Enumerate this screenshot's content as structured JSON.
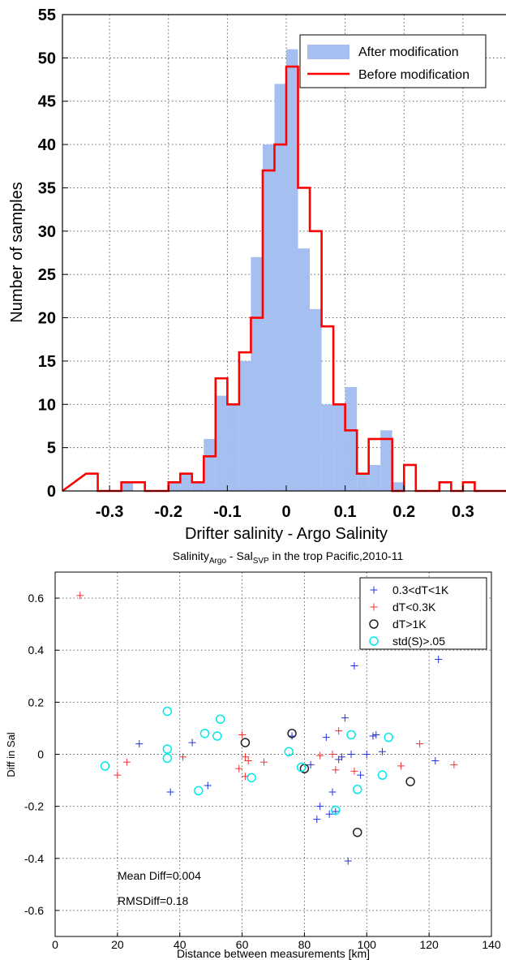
{
  "chart_data": [
    {
      "type": "bar",
      "xlabel": "Drifter salinity - Argo Salinity",
      "ylabel": "Number of samples",
      "xlim": [
        -0.38,
        0.38
      ],
      "ylim": [
        0,
        55
      ],
      "xticks": [
        "-0.3",
        "-0.2",
        "-0.1",
        "0",
        "0.1",
        "0.2",
        "0.3"
      ],
      "yticks": [
        "0",
        "5",
        "10",
        "15",
        "20",
        "25",
        "30",
        "35",
        "40",
        "45",
        "50",
        "55"
      ],
      "bin_width": 0.02,
      "bin_centers": [
        -0.33,
        -0.31,
        -0.29,
        -0.27,
        -0.25,
        -0.23,
        -0.21,
        -0.19,
        -0.17,
        -0.15,
        -0.13,
        -0.11,
        -0.09,
        -0.07,
        -0.05,
        -0.03,
        -0.01,
        0.01,
        0.03,
        0.05,
        0.07,
        0.09,
        0.11,
        0.13,
        0.15,
        0.17,
        0.19,
        0.21,
        0.23,
        0.25,
        0.27,
        0.29,
        0.31,
        0.33
      ],
      "grid": true,
      "legend_position": "top-right",
      "series": [
        {
          "name": "After modification",
          "style": "filled",
          "color": "#a4bff0",
          "values": [
            0,
            0,
            0,
            1,
            0,
            0,
            0,
            1,
            2,
            1,
            6,
            11,
            10,
            15,
            27,
            40,
            47,
            51,
            28,
            21,
            10,
            10,
            12,
            2,
            3,
            7,
            1,
            0,
            0,
            0,
            0,
            0,
            0,
            0
          ]
        },
        {
          "name": "Before modification",
          "style": "outline",
          "color": "#ff0000",
          "values": [
            2,
            0,
            0,
            1,
            1,
            0,
            0,
            1,
            2,
            1,
            4,
            13,
            10,
            16,
            20,
            37,
            40,
            49,
            35,
            30,
            19,
            10,
            7,
            2,
            6,
            6,
            0,
            3,
            0,
            0,
            1,
            0,
            1,
            0
          ]
        }
      ]
    },
    {
      "type": "scatter",
      "title_main": "Salinity",
      "title_sub1": "Argo",
      "title_mid": " - Sal",
      "title_sub2": "SVP",
      "title_tail": " in the trop Pacific,2010-11",
      "xlabel": "Distance between measurements [km]",
      "ylabel": "Diff in Sal",
      "xlim": [
        0,
        140
      ],
      "ylim": [
        -0.7,
        0.7
      ],
      "xticks": [
        "0",
        "20",
        "40",
        "60",
        "80",
        "100",
        "120",
        "140"
      ],
      "yticks": [
        "0.6",
        "0.4",
        "0.2",
        "0",
        "-0.2",
        "-0.4",
        "-0.6"
      ],
      "grid": true,
      "legend_position": "top-right",
      "annotations": [
        "Mean Diff=0.004",
        "RMSDiff=0.18"
      ],
      "series": [
        {
          "name": "0.3<dT<1K",
          "marker": "plus",
          "color": "#2233dd",
          "points": [
            [
              27,
              0.04
            ],
            [
              37,
              -0.145
            ],
            [
              44,
              0.045
            ],
            [
              49,
              -0.12
            ],
            [
              76,
              0.07
            ],
            [
              82,
              -0.04
            ],
            [
              84,
              -0.25
            ],
            [
              85,
              -0.2
            ],
            [
              87,
              0.065
            ],
            [
              88,
              -0.23
            ],
            [
              89,
              -0.145
            ],
            [
              90,
              -0.22
            ],
            [
              91,
              -0.02
            ],
            [
              92,
              -0.01
            ],
            [
              93,
              0.14
            ],
            [
              94,
              -0.41
            ],
            [
              95,
              0.0
            ],
            [
              96,
              0.34
            ],
            [
              98,
              -0.08
            ],
            [
              100,
              0.0
            ],
            [
              102,
              0.07
            ],
            [
              103,
              0.075
            ],
            [
              105,
              0.01
            ],
            [
              122,
              -0.025
            ],
            [
              123,
              0.365
            ]
          ]
        },
        {
          "name": "dT<0.3K",
          "marker": "plus",
          "color": "#ee3333",
          "points": [
            [
              8,
              0.61
            ],
            [
              20,
              -0.08
            ],
            [
              23,
              -0.03
            ],
            [
              41,
              -0.01
            ],
            [
              59,
              -0.055
            ],
            [
              60,
              0.075
            ],
            [
              61,
              -0.085
            ],
            [
              61,
              -0.01
            ],
            [
              62,
              -0.025
            ],
            [
              67,
              -0.03
            ],
            [
              85,
              -0.005
            ],
            [
              89,
              0.0
            ],
            [
              90,
              -0.06
            ],
            [
              91,
              0.09
            ],
            [
              96,
              -0.065
            ],
            [
              111,
              -0.045
            ],
            [
              117,
              0.04
            ],
            [
              128,
              -0.04
            ]
          ]
        },
        {
          "name": "dT>1K",
          "marker": "circle",
          "color": "#222222",
          "points": [
            [
              61,
              0.045
            ],
            [
              76,
              0.08
            ],
            [
              80,
              -0.055
            ],
            [
              97,
              -0.3
            ],
            [
              114,
              -0.105
            ]
          ]
        },
        {
          "name": "std(S)>.05",
          "marker": "circle",
          "color": "#00e8e8",
          "points": [
            [
              16,
              -0.045
            ],
            [
              36,
              0.165
            ],
            [
              36,
              0.02
            ],
            [
              36,
              -0.015
            ],
            [
              46,
              -0.14
            ],
            [
              48,
              0.08
            ],
            [
              52,
              0.07
            ],
            [
              53,
              0.135
            ],
            [
              63,
              -0.09
            ],
            [
              75,
              0.01
            ],
            [
              79,
              -0.05
            ],
            [
              90,
              -0.215
            ],
            [
              95,
              0.075
            ],
            [
              97,
              -0.135
            ],
            [
              105,
              -0.08
            ],
            [
              107,
              0.065
            ]
          ]
        }
      ]
    }
  ]
}
